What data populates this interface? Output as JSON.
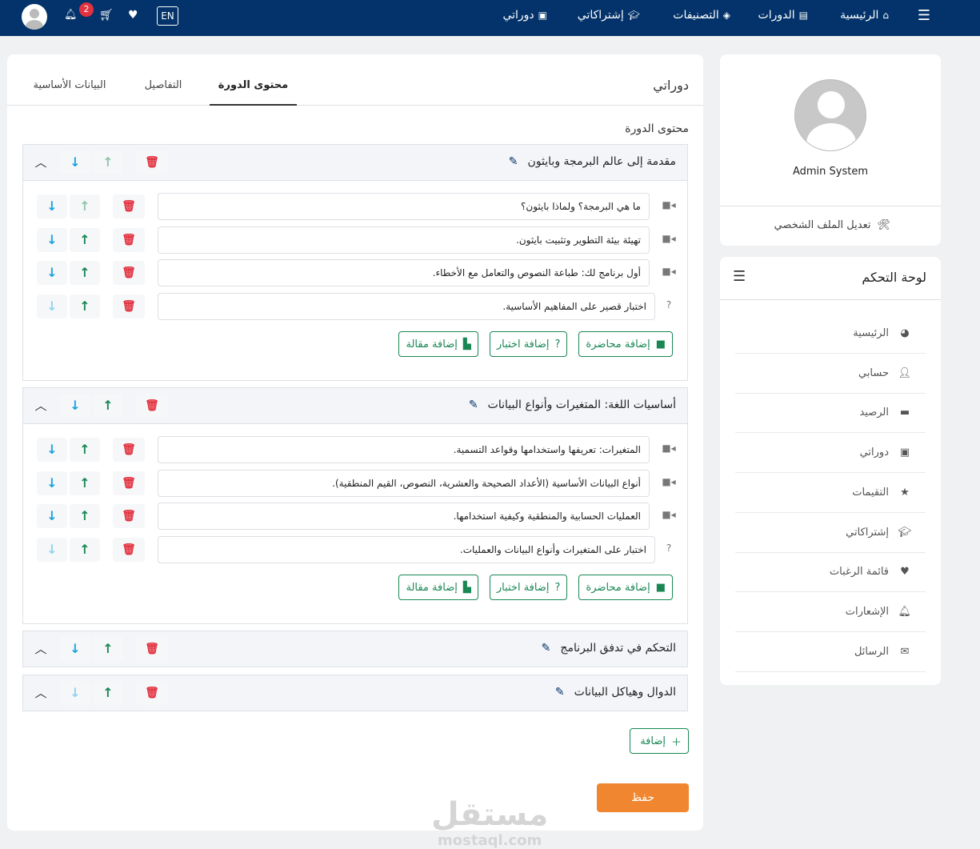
{
  "nav": {
    "items": [
      {
        "label": "الرئيسية",
        "icon": "home-icon"
      },
      {
        "label": "الدورات",
        "icon": "book-icon"
      },
      {
        "label": "التصنيفات",
        "icon": "layers-icon"
      },
      {
        "label": "إشتراكاتي",
        "icon": "graduation-cap-icon"
      },
      {
        "label": "دوراتي",
        "icon": "briefcase-icon"
      }
    ],
    "notifications_count": "2",
    "language": "EN",
    "bg_color": "#03336a"
  },
  "main": {
    "title": "دوراتي",
    "tabs": [
      {
        "label": "محتوى الدورة",
        "active": true
      },
      {
        "label": "التفاصيل",
        "active": false
      },
      {
        "label": "البيانات الأساسية",
        "active": false
      }
    ],
    "subtitle": "محتوى الدورة",
    "sections": [
      {
        "title": "مقدمة إلى عالم البرمجة وبايثون",
        "expanded": true,
        "items": [
          {
            "type": "lecture",
            "text": "ما هي البرمجة؟ ولماذا بايثون؟"
          },
          {
            "type": "lecture",
            "text": "تهيئة بيئة التطوير وتثبيت بايثون."
          },
          {
            "type": "lecture",
            "text": "أول برنامج لك: طباعة النصوص والتعامل مع الأخطاء."
          },
          {
            "type": "quiz",
            "text": "اختبار قصير على المفاهيم الأساسية."
          }
        ]
      },
      {
        "title": "أساسيات اللغة: المتغيرات وأنواع البيانات",
        "expanded": true,
        "items": [
          {
            "type": "lecture",
            "text": "المتغيرات: تعريفها واستخدامها وقواعد التسمية."
          },
          {
            "type": "lecture",
            "text": "أنواع البيانات الأساسية (الأعداد الصحيحة والعشرية، النصوص، القيم المنطقية)."
          },
          {
            "type": "lecture",
            "text": "العمليات الحسابية والمنطقية وكيفية استخدامها."
          },
          {
            "type": "quiz",
            "text": "اختبار على المتغيرات وأنواع البيانات والعمليات."
          }
        ]
      },
      {
        "title": "التحكم في تدفق البرنامج",
        "expanded": false,
        "items": []
      },
      {
        "title": "الدوال وهياكل البيانات",
        "expanded": false,
        "items": []
      }
    ],
    "add_lecture": "إضافة محاضرة",
    "add_quiz": "إضافة اختبار",
    "add_article": "إضافة مقالة",
    "add_label": "إضافة",
    "save_label": "حفظ",
    "save_color": "#f0862f",
    "accent_green": "#198754"
  },
  "watermark": {
    "arabic": "مستقل",
    "latin": "mostaql.com"
  },
  "profile": {
    "name": "Admin System",
    "edit_label": "تعديل الملف الشخصي"
  },
  "dashboard": {
    "title": "لوحة التحكم",
    "items": [
      {
        "label": "الرئيسية",
        "icon": "dashboard-icon"
      },
      {
        "label": "حسابي",
        "icon": "user-icon"
      },
      {
        "label": "الرصيد",
        "icon": "credit-card-icon"
      },
      {
        "label": "دوراتي",
        "icon": "briefcase-icon"
      },
      {
        "label": "التقيمات",
        "icon": "star-icon"
      },
      {
        "label": "إشتراكاتي",
        "icon": "graduation-cap-icon"
      },
      {
        "label": "قائمة الرغبات",
        "icon": "heart-icon"
      },
      {
        "label": "الإشعارات",
        "icon": "bell-icon"
      },
      {
        "label": "الرسائل",
        "icon": "envelope-icon"
      }
    ]
  }
}
